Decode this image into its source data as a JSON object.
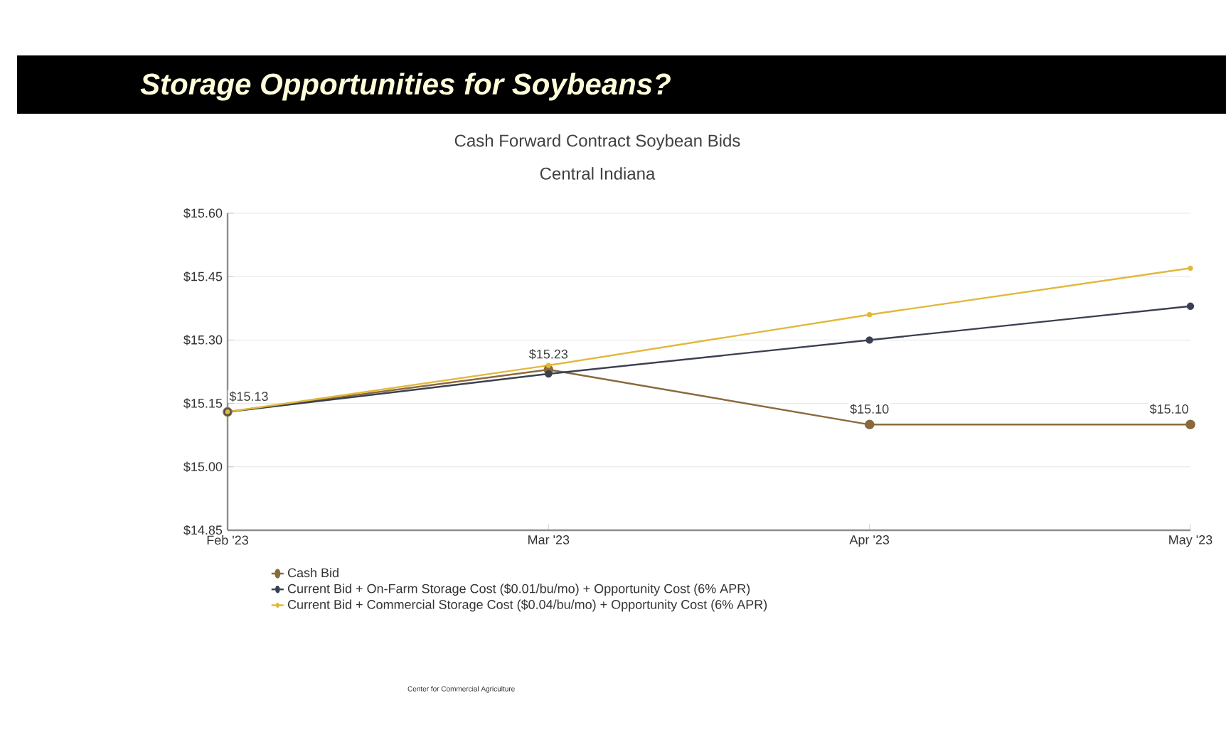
{
  "chart_data": {
    "type": "line",
    "title": "Cash Forward Contract Soybean Bids",
    "subtitle": "Central Indiana",
    "annotations": [
      "Storage Opportunities for Soybeans?",
      "Center for Commercial Agriculture"
    ],
    "categories": [
      "Feb '23",
      "Mar '23",
      "Apr '23",
      "May '23"
    ],
    "series": [
      {
        "name": "Cash Bid",
        "color": "#8a6a3c",
        "values": [
          15.13,
          15.23,
          15.1,
          15.1
        ],
        "value_labels": [
          "$15.13",
          "$15.23",
          "$15.10",
          "$15.10"
        ]
      },
      {
        "name": "Current Bid + On-Farm Storage Cost ($0.01/bu/mo) + Opportunity Cost (6% APR)",
        "color": "#3a4050",
        "values": [
          15.13,
          15.22,
          15.3,
          15.38
        ]
      },
      {
        "name": "Current Bid + Commercial Storage Cost ($0.04/bu/mo) + Opportunity Cost (6% APR)",
        "color": "#e2b83c",
        "values": [
          15.13,
          15.24,
          15.36,
          15.47
        ]
      }
    ],
    "ylim": [
      14.85,
      15.6
    ],
    "yticks": [
      {
        "value": 14.85,
        "label": "$14.85"
      },
      {
        "value": 15.0,
        "label": "$15.00"
      },
      {
        "value": 15.15,
        "label": "$15.15"
      },
      {
        "value": 15.3,
        "label": "$15.30"
      },
      {
        "value": 15.45,
        "label": "$15.45"
      },
      {
        "value": 15.6,
        "label": "$15.60"
      }
    ],
    "grid": "y",
    "legend": "bottom",
    "marker": "circle",
    "line_style": "solid"
  }
}
